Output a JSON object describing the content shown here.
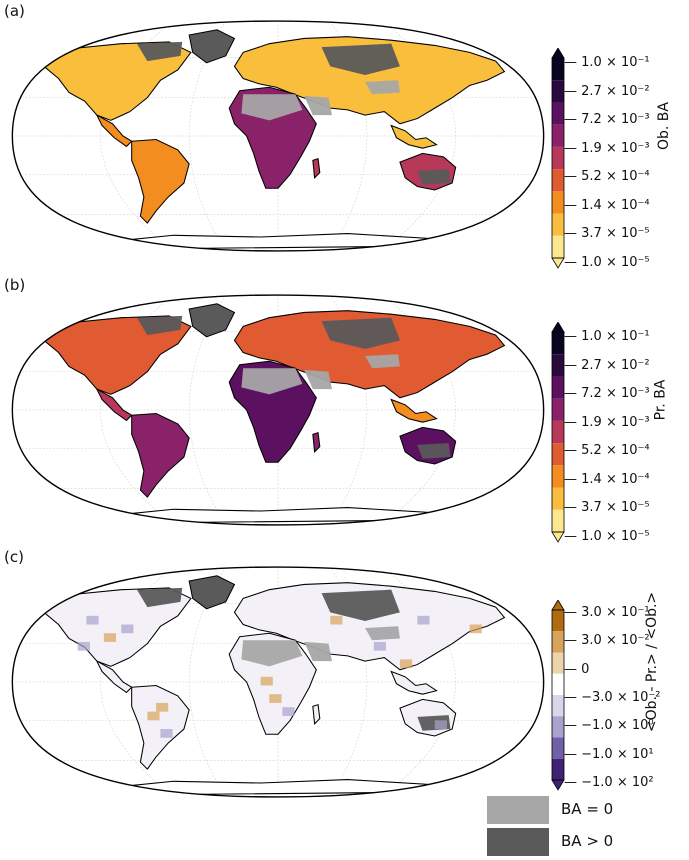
{
  "colors": {
    "ba_zero": "#a6a6a6",
    "ba_positive": "#5a5a5a",
    "inferno": [
      "#fbe88e",
      "#f8be3c",
      "#f38d20",
      "#e05a32",
      "#b8385a",
      "#8a2269",
      "#5c1160",
      "#2a0a3e",
      "#0b0420"
    ],
    "diverging": [
      "#b06a10",
      "#d8a35a",
      "#ecd5ad",
      "#ffffff",
      "#d9d6ea",
      "#a8a2cc",
      "#7060a8",
      "#3e2275"
    ]
  },
  "panels": [
    {
      "label": "(a)",
      "cbar_title": "Ob. BA",
      "ticks": [
        "1.0 × 10⁻¹",
        "2.7 × 10⁻²",
        "7.2 × 10⁻³",
        "1.9 × 10⁻³",
        "5.2 × 10⁻⁴",
        "1.4 × 10⁻⁴",
        "3.7 × 10⁻⁵",
        "1.0 × 10⁻⁵"
      ]
    },
    {
      "label": "(b)",
      "cbar_title": "Pr. BA",
      "ticks": [
        "1.0 × 10⁻¹",
        "2.7 × 10⁻²",
        "7.2 × 10⁻³",
        "1.9 × 10⁻³",
        "5.2 × 10⁻⁴",
        "1.4 × 10⁻⁴",
        "3.7 × 10⁻⁵",
        "1.0 × 10⁻⁵"
      ]
    },
    {
      "label": "(c)",
      "cbar_title": "<Ob. - Pr.> / <Ob.>",
      "ticks": [
        "3.0 × 10⁻¹",
        "3.0 × 10⁻²",
        "0",
        "−3.0 × 10⁻²",
        "−1.0 × 10⁰",
        "−1.0 × 10¹",
        "−1.0 × 10²"
      ]
    }
  ],
  "legend": [
    {
      "label": "BA = 0",
      "color": "#a6a6a6"
    },
    {
      "label": "BA > 0",
      "color": "#5a5a5a"
    }
  ]
}
